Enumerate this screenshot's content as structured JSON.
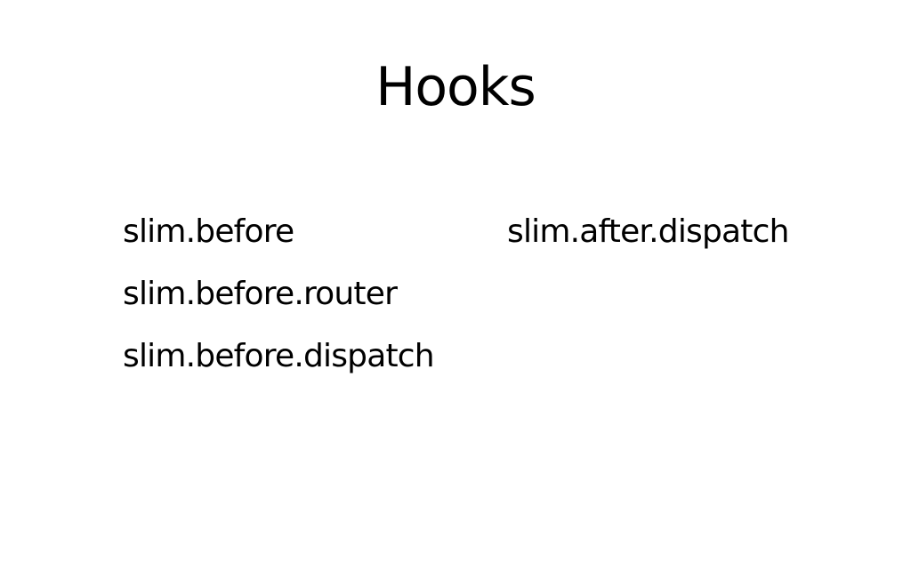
{
  "slide": {
    "title": "Hooks",
    "left_column": [
      "slim.before",
      "slim.before.router",
      "slim.before.dispatch"
    ],
    "right_column": [
      "slim.after.dispatch"
    ]
  }
}
